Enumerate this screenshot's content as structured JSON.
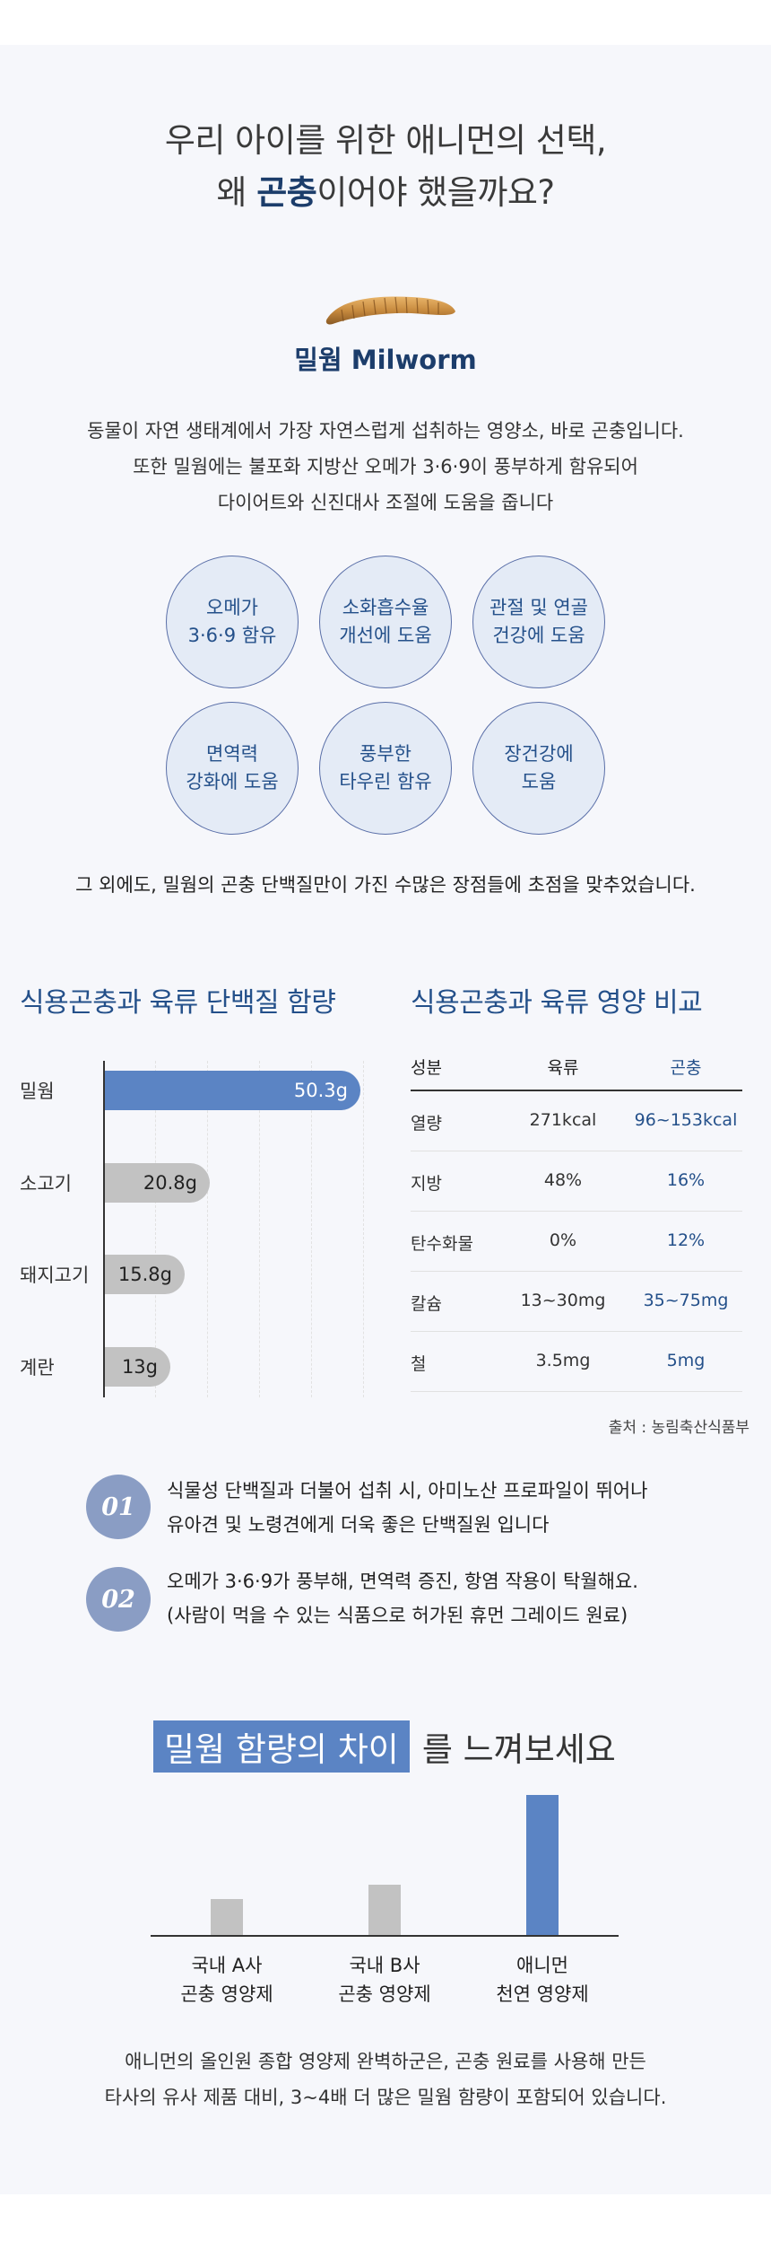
{
  "headline": {
    "line1": "우리 아이를 위한 애니먼의 선택,",
    "line2_pre": "왜 ",
    "line2_highlight": "곤충",
    "line2_post": "이어야 했을까요?"
  },
  "worm": {
    "icon": "mealworm-icon",
    "title": "밀웜 Milworm"
  },
  "intro": {
    "line1": "동물이 자연 생태계에서 가장 자연스럽게 섭취하는 영양소, 바로 곤충입니다.",
    "line2": "또한 밀웜에는 불포화 지방산 오메가 3·6·9이 풍부하게 함유되어",
    "line3": "다이어트와 신진대사 조절에 도움을 줍니다"
  },
  "benefits": [
    {
      "line1": "오메가",
      "line2": "3·6·9 함유"
    },
    {
      "line1": "소화흡수율",
      "line2": "개선에 도움"
    },
    {
      "line1": "관절 및 연골",
      "line2": "건강에 도움"
    },
    {
      "line1": "면역력",
      "line2": "강화에 도움"
    },
    {
      "line1": "풍부한",
      "line2": "타우린 함유"
    },
    {
      "line1": "장건강에",
      "line2": "도움"
    }
  ],
  "other_line": "그 외에도, 밀웜의 곤충 단백질만이 가진 수많은 장점들에 초점을 맞추었습니다.",
  "protein_chart": {
    "title": "식용곤충과 육류 단백질 함량",
    "chart_data": {
      "type": "bar",
      "orientation": "horizontal",
      "categories": [
        "밀웜",
        "소고기",
        "돼지고기",
        "계란"
      ],
      "values": [
        50.3,
        20.8,
        15.8,
        13
      ],
      "value_labels": [
        "50.3g",
        "20.8g",
        "15.8g",
        "13g"
      ],
      "unit": "g",
      "xlim": [
        0,
        51
      ],
      "colors": [
        "#5b84c4",
        "#c2c2c2",
        "#c2c2c2",
        "#c2c2c2"
      ],
      "grid": true
    }
  },
  "nutrition_table": {
    "title": "식용곤충과 육류 영양 비교",
    "headers": [
      "성분",
      "육류",
      "곤충"
    ],
    "rows": [
      [
        "열량",
        "271kcal",
        "96~153kcal"
      ],
      [
        "지방",
        "48%",
        "16%"
      ],
      [
        "탄수화물",
        "0%",
        "12%"
      ],
      [
        "칼슘",
        "13~30mg",
        "35~75mg"
      ],
      [
        "철",
        "3.5mg",
        "5mg"
      ]
    ],
    "accent_color": "#24508a"
  },
  "source": "출처 : 농림축산식품부",
  "points": [
    {
      "number": "01",
      "line1": "식물성 단백질과 더불어 섭취 시, 아미노산 프로파일이 뛰어나",
      "line2": "유아견 및 노령견에게 더욱 좋은 단백질원 입니다"
    },
    {
      "number": "02",
      "line1": "오메가 3·6·9가  풍부해, 면역력 증진, 항염 작용이 탁월해요.",
      "line2": "(사람이 먹을 수 있는 식품으로 허가된 휴먼 그레이드 원료)"
    }
  ],
  "difference": {
    "highlight": "밀웜 함량의 차이",
    "rest": "를 느껴보세요",
    "chart_data": {
      "type": "bar",
      "categories": [
        "국내 A사 곤충 영양제",
        "국내 B사 곤충 영양제",
        "애니먼 천연 영양제"
      ],
      "values": [
        1,
        1.4,
        3.9
      ],
      "ylim": [
        0,
        4
      ],
      "colors": [
        "#c2c2c2",
        "#c2c2c2",
        "#5b84c4"
      ]
    },
    "labels": [
      {
        "line1": "국내 A사",
        "line2": "곤충 영양제"
      },
      {
        "line1": "국내 B사",
        "line2": "곤충 영양제"
      },
      {
        "line1": "애니먼",
        "line2": "천연 영양제"
      }
    ]
  },
  "bottom": {
    "line1": "애니먼의 올인원 종합 영양제 완벽하군은, 곤충 원료를 사용해 만든",
    "line2": "타사의 유사 제품 대비, 3~4배 더 많은 밀웜 함량이 포함되어 있습니다."
  }
}
